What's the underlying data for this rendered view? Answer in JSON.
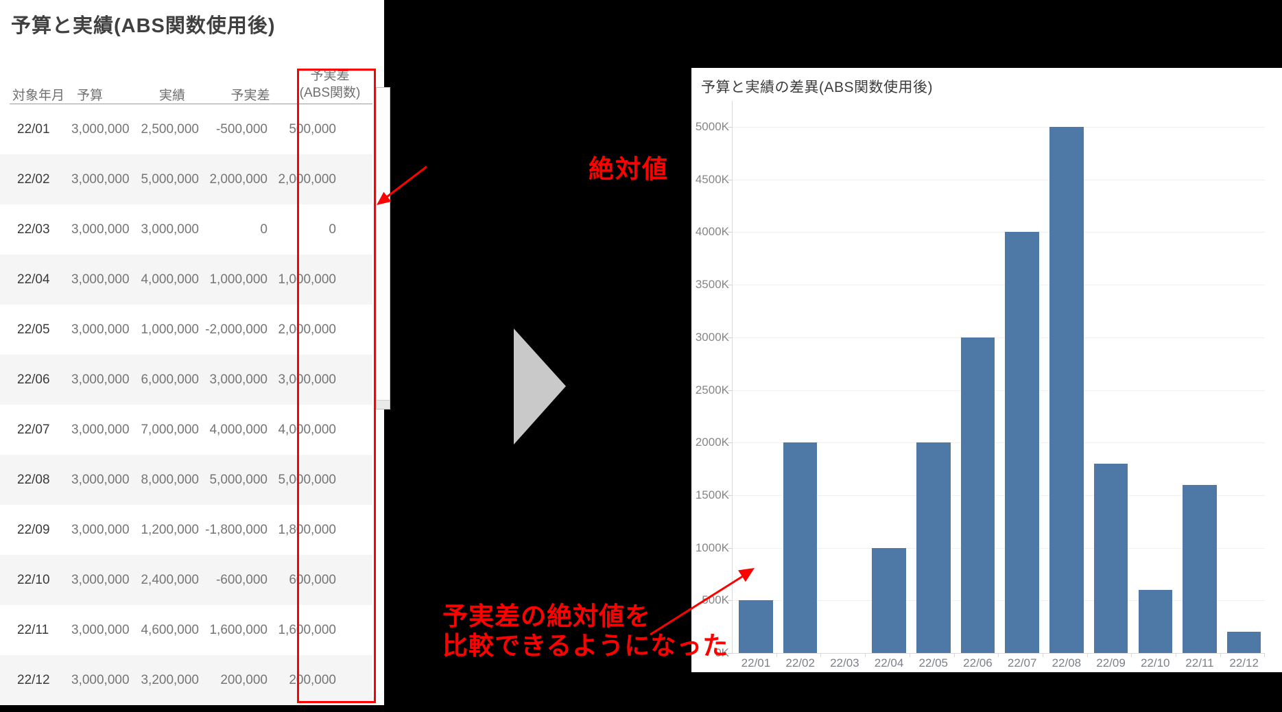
{
  "table_panel": {
    "title": "予算と実績(ABS関数使用後)",
    "headers": {
      "month": "対象年月",
      "budget": "予算",
      "actual": "実績",
      "diff": "予実差",
      "abs_line1": "予実差",
      "abs_line2": "(ABS関数)"
    },
    "rows": [
      {
        "month": "22/01",
        "budget": "3,000,000",
        "actual": "2,500,000",
        "diff": "-500,000",
        "abs": "500,000"
      },
      {
        "month": "22/02",
        "budget": "3,000,000",
        "actual": "5,000,000",
        "diff": "2,000,000",
        "abs": "2,000,000"
      },
      {
        "month": "22/03",
        "budget": "3,000,000",
        "actual": "3,000,000",
        "diff": "0",
        "abs": "0"
      },
      {
        "month": "22/04",
        "budget": "3,000,000",
        "actual": "4,000,000",
        "diff": "1,000,000",
        "abs": "1,000,000"
      },
      {
        "month": "22/05",
        "budget": "3,000,000",
        "actual": "1,000,000",
        "diff": "-2,000,000",
        "abs": "2,000,000"
      },
      {
        "month": "22/06",
        "budget": "3,000,000",
        "actual": "6,000,000",
        "diff": "3,000,000",
        "abs": "3,000,000"
      },
      {
        "month": "22/07",
        "budget": "3,000,000",
        "actual": "7,000,000",
        "diff": "4,000,000",
        "abs": "4,000,000"
      },
      {
        "month": "22/08",
        "budget": "3,000,000",
        "actual": "8,000,000",
        "diff": "5,000,000",
        "abs": "5,000,000"
      },
      {
        "month": "22/09",
        "budget": "3,000,000",
        "actual": "1,200,000",
        "diff": "-1,800,000",
        "abs": "1,800,000"
      },
      {
        "month": "22/10",
        "budget": "3,000,000",
        "actual": "2,400,000",
        "diff": "-600,000",
        "abs": "600,000"
      },
      {
        "month": "22/11",
        "budget": "3,000,000",
        "actual": "4,600,000",
        "diff": "1,600,000",
        "abs": "1,600,000"
      },
      {
        "month": "22/12",
        "budget": "3,000,000",
        "actual": "3,200,000",
        "diff": "200,000",
        "abs": "200,000"
      }
    ],
    "highlight_box_color": "#ff0000"
  },
  "annotations": {
    "top_label": "絶対値",
    "bottom_label_line1": "予実差の絶対値を",
    "bottom_label_line2": "比較できるようになった",
    "color": "#ff0000",
    "triangle_color": "#c9c9c9"
  },
  "chart_panel": {
    "title": "予算と実績の差異(ABS関数使用後)"
  },
  "chart_data": {
    "type": "bar",
    "title": "予算と実績の差異(ABS関数使用後)",
    "categories": [
      "22/01",
      "22/02",
      "22/03",
      "22/04",
      "22/05",
      "22/06",
      "22/07",
      "22/08",
      "22/09",
      "22/10",
      "22/11",
      "22/12"
    ],
    "values_k": [
      500,
      2000,
      0,
      1000,
      2000,
      3000,
      4000,
      5000,
      1800,
      600,
      1600,
      200
    ],
    "y_ticks": [
      "0K",
      "500K",
      "1000K",
      "1500K",
      "2000K",
      "2500K",
      "3000K",
      "3500K",
      "4000K",
      "4500K",
      "5000K"
    ],
    "ylim_k": [
      0,
      5000
    ],
    "xlabel": "",
    "ylabel": "",
    "legend": "none",
    "grid": "faint-horizontal",
    "bar_color": "#4e79a7"
  }
}
